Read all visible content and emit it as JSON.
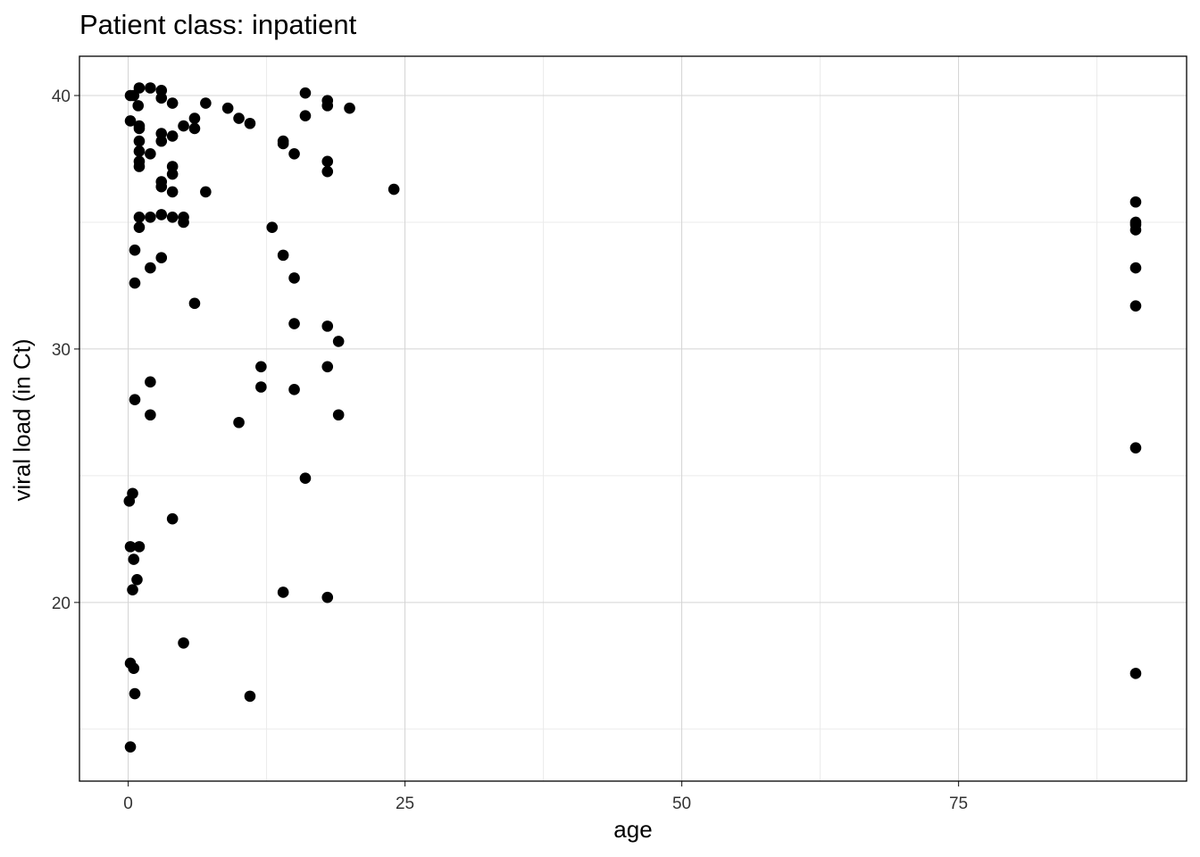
{
  "chart_data": {
    "type": "scatter",
    "title": "Patient class: inpatient",
    "xlabel": "age",
    "ylabel": "viral load (in Ct)",
    "xlim": [
      -4.4,
      95.6
    ],
    "ylim": [
      12.95,
      41.55
    ],
    "xticks": [
      0,
      25,
      50,
      75
    ],
    "yticks": [
      20,
      30,
      40
    ],
    "grid": true,
    "point_color": "#000000",
    "points": [
      [
        0.2,
        40.0
      ],
      [
        0.5,
        40.0
      ],
      [
        1,
        40.3
      ],
      [
        2,
        40.3
      ],
      [
        3,
        40.2
      ],
      [
        3,
        39.9
      ],
      [
        4,
        39.7
      ],
      [
        0.9,
        39.6
      ],
      [
        7,
        39.7
      ],
      [
        9,
        39.5
      ],
      [
        10,
        39.1
      ],
      [
        11,
        38.9
      ],
      [
        6,
        39.1
      ],
      [
        5,
        38.8
      ],
      [
        6,
        38.7
      ],
      [
        0.2,
        39.0
      ],
      [
        1,
        38.8
      ],
      [
        1,
        38.7
      ],
      [
        3,
        38.5
      ],
      [
        4,
        38.4
      ],
      [
        3,
        38.2
      ],
      [
        1,
        38.2
      ],
      [
        2,
        37.7
      ],
      [
        1,
        37.8
      ],
      [
        1,
        37.4
      ],
      [
        1,
        37.2
      ],
      [
        4,
        37.2
      ],
      [
        4,
        36.9
      ],
      [
        3,
        36.6
      ],
      [
        3,
        36.4
      ],
      [
        4,
        36.2
      ],
      [
        7,
        36.2
      ],
      [
        16,
        40.1
      ],
      [
        18,
        39.8
      ],
      [
        18,
        39.6
      ],
      [
        20,
        39.5
      ],
      [
        16,
        39.2
      ],
      [
        14,
        38.2
      ],
      [
        14,
        38.1
      ],
      [
        15,
        37.7
      ],
      [
        18,
        37.4
      ],
      [
        18,
        37.0
      ],
      [
        24,
        36.3
      ],
      [
        1,
        35.2
      ],
      [
        2,
        35.2
      ],
      [
        3,
        35.3
      ],
      [
        4,
        35.2
      ],
      [
        5,
        35.2
      ],
      [
        5,
        35.0
      ],
      [
        1,
        34.8
      ],
      [
        13,
        34.8
      ],
      [
        0.6,
        33.9
      ],
      [
        14,
        33.7
      ],
      [
        3,
        33.6
      ],
      [
        2,
        33.2
      ],
      [
        15,
        32.8
      ],
      [
        0.6,
        32.6
      ],
      [
        6,
        31.8
      ],
      [
        15,
        31.0
      ],
      [
        18,
        30.9
      ],
      [
        19,
        30.3
      ],
      [
        12,
        29.3
      ],
      [
        18,
        29.3
      ],
      [
        2,
        28.7
      ],
      [
        12,
        28.5
      ],
      [
        15,
        28.4
      ],
      [
        0.6,
        28.0
      ],
      [
        2,
        27.4
      ],
      [
        19,
        27.4
      ],
      [
        10,
        27.1
      ],
      [
        16,
        24.9
      ],
      [
        0.4,
        24.3
      ],
      [
        0.1,
        24.0
      ],
      [
        4,
        23.3
      ],
      [
        0.2,
        22.2
      ],
      [
        1,
        22.2
      ],
      [
        0.5,
        21.7
      ],
      [
        0.8,
        20.9
      ],
      [
        0.4,
        20.5
      ],
      [
        14,
        20.4
      ],
      [
        18,
        20.2
      ],
      [
        5,
        18.4
      ],
      [
        0.2,
        17.6
      ],
      [
        0.5,
        17.4
      ],
      [
        0.6,
        16.4
      ],
      [
        11,
        16.3
      ],
      [
        0.2,
        14.3
      ],
      [
        91,
        35.8
      ],
      [
        91,
        35.0
      ],
      [
        91,
        34.9
      ],
      [
        91,
        34.7
      ],
      [
        91,
        33.2
      ],
      [
        91,
        31.7
      ],
      [
        91,
        26.1
      ],
      [
        91,
        17.2
      ]
    ]
  }
}
